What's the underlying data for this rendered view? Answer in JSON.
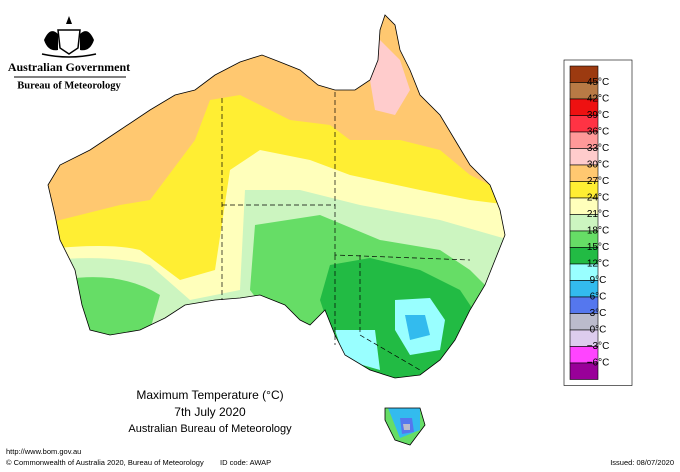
{
  "header": {
    "government": "Australian Government",
    "agency": "Bureau of Meteorology"
  },
  "title": {
    "line1": "Maximum Temperature (°C)",
    "line2": "7th July 2020",
    "line3": "Australian Bureau of Meteorology"
  },
  "legend": {
    "labels": [
      "45°C",
      "42°C",
      "39°C",
      "36°C",
      "33°C",
      "30°C",
      "27°C",
      "24°C",
      "21°C",
      "18°C",
      "15°C",
      "12°C",
      "9°C",
      "6°C",
      "3°C",
      "0°C",
      "−3°C",
      "−6°C"
    ],
    "colors": [
      "#9c3a10",
      "#b87a45",
      "#ee1111",
      "#ff3344",
      "#ff9999",
      "#ffcccc",
      "#ffc870",
      "#ffee33",
      "#ffffbb",
      "#ccf5c0",
      "#66dd66",
      "#22bb44",
      "#99ffff",
      "#33bbee",
      "#5577ee",
      "#bbbbcc",
      "#ddccee",
      "#ff44ff",
      "#990099"
    ]
  },
  "footer": {
    "url": "http://www.bom.gov.au",
    "copyright": "© Commonwealth of Australia 2020, Bureau of Meteorology",
    "id_code": "ID code: AWAP",
    "issued": "Issued: 08/07/2020"
  }
}
